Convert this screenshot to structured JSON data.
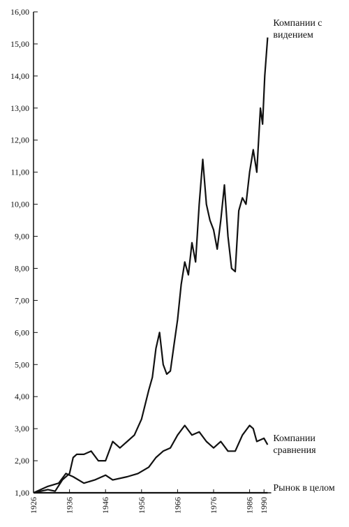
{
  "chart_data": {
    "type": "line",
    "xlim": [
      1926,
      1992
    ],
    "xticks": [
      1926,
      1936,
      1946,
      1956,
      1966,
      1976,
      1986,
      1990
    ],
    "ylim": [
      1,
      16
    ],
    "yticks": [
      {
        "value": 1,
        "label": "1,00"
      },
      {
        "value": 2,
        "label": "2,00"
      },
      {
        "value": 3,
        "label": "3,00"
      },
      {
        "value": 4,
        "label": "4,00"
      },
      {
        "value": 5,
        "label": "5,00"
      },
      {
        "value": 6,
        "label": "6,00"
      },
      {
        "value": 7,
        "label": "7,00"
      },
      {
        "value": 8,
        "label": "8,00"
      },
      {
        "value": 9,
        "label": "9,00"
      },
      {
        "value": 10,
        "label": "10,00"
      },
      {
        "value": 11,
        "label": "11,00"
      },
      {
        "value": 12,
        "label": "12,00"
      },
      {
        "value": 13,
        "label": "13,00"
      },
      {
        "value": 14,
        "label": "14,00"
      },
      {
        "value": 15,
        "label": "15,00"
      },
      {
        "value": 16,
        "label": "16,00"
      }
    ],
    "series": [
      {
        "name": "Компании с видением",
        "color": "#111111",
        "x": [
          1926,
          1930,
          1932,
          1934,
          1936,
          1937,
          1938,
          1940,
          1942,
          1944,
          1946,
          1948,
          1950,
          1952,
          1954,
          1956,
          1958,
          1959,
          1960,
          1961,
          1962,
          1963,
          1964,
          1965,
          1966,
          1967,
          1968,
          1969,
          1970,
          1971,
          1972,
          1973,
          1974,
          1975,
          1976,
          1977,
          1978,
          1979,
          1980,
          1981,
          1982,
          1983,
          1984,
          1985,
          1986,
          1987,
          1988,
          1989,
          1989.6,
          1990.2,
          1991
        ],
        "values": [
          1.0,
          1.1,
          1.05,
          1.4,
          1.6,
          2.1,
          2.2,
          2.2,
          2.3,
          2.0,
          2.0,
          2.6,
          2.4,
          2.6,
          2.8,
          3.3,
          4.2,
          4.6,
          5.5,
          6.0,
          5.0,
          4.7,
          4.8,
          5.6,
          6.4,
          7.5,
          8.2,
          7.8,
          8.8,
          8.2,
          10.0,
          11.4,
          10.0,
          9.5,
          9.2,
          8.6,
          9.5,
          10.6,
          9.0,
          8.0,
          7.9,
          9.8,
          10.2,
          10.0,
          11.0,
          11.7,
          11.0,
          13.0,
          12.5,
          14.0,
          15.2
        ]
      },
      {
        "name": "Компании сравнения",
        "color": "#111111",
        "x": [
          1926,
          1930,
          1933,
          1935,
          1937,
          1940,
          1943,
          1946,
          1948,
          1952,
          1955,
          1958,
          1960,
          1962,
          1964,
          1966,
          1968,
          1970,
          1972,
          1974,
          1976,
          1978,
          1980,
          1982,
          1984,
          1986,
          1987,
          1988,
          1990,
          1991
        ],
        "values": [
          1.0,
          1.2,
          1.3,
          1.6,
          1.5,
          1.3,
          1.4,
          1.55,
          1.4,
          1.5,
          1.6,
          1.8,
          2.1,
          2.3,
          2.4,
          2.8,
          3.1,
          2.8,
          2.9,
          2.6,
          2.4,
          2.6,
          2.3,
          2.3,
          2.8,
          3.1,
          3.0,
          2.6,
          2.7,
          2.5
        ]
      },
      {
        "name": "Рынок в целом",
        "color": "#111111",
        "x": [
          1926,
          1991
        ],
        "values": [
          1.0,
          1.0
        ]
      }
    ]
  }
}
